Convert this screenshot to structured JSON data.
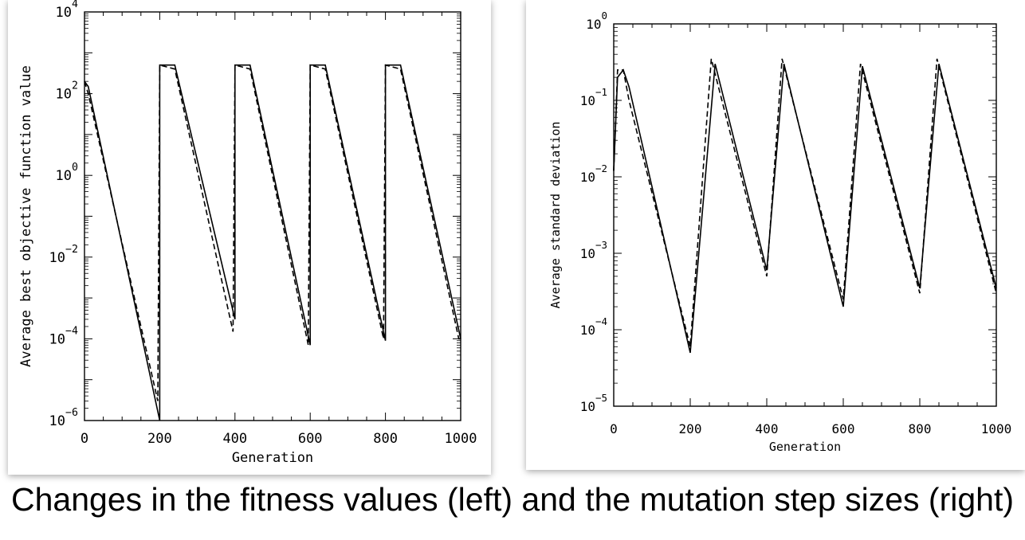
{
  "caption": "Changes in the fitness values (left) and the mutation step sizes (right)",
  "chart_data": [
    {
      "type": "line",
      "xlabel": "Generation",
      "ylabel": "Average best objective function value",
      "xlim": [
        0,
        1000
      ],
      "ylim": [
        1e-06,
        10000.0
      ],
      "yscale": "log",
      "xticks": [
        "0",
        "200",
        "400",
        "600",
        "800",
        "1000"
      ],
      "yticks": [
        {
          "base": "10",
          "exp": "4",
          "value": 10000
        },
        {
          "base": "10",
          "exp": "2",
          "value": 100
        },
        {
          "base": "10",
          "exp": "0",
          "value": 1
        },
        {
          "base": "10",
          "exp": "−2",
          "value": 0.01
        },
        {
          "base": "10",
          "exp": "−4",
          "value": 0.0001
        },
        {
          "base": "10",
          "exp": "−6",
          "value": 1e-06
        }
      ],
      "grid": false,
      "series": [
        {
          "style": "solid",
          "x": [
            0,
            10,
            200,
            200,
            210,
            240,
            400,
            400,
            410,
            440,
            600,
            600,
            610,
            640,
            800,
            800,
            810,
            840,
            1000
          ],
          "y": [
            200,
            150,
            1e-06,
            500,
            500,
            500,
            0.0003,
            500,
            500,
            500,
            7e-05,
            500,
            500,
            500,
            9e-05,
            500,
            500,
            500,
            0.0001
          ]
        },
        {
          "style": "dashed",
          "x": [
            0,
            10,
            195,
            200,
            240,
            395,
            400,
            440,
            595,
            600,
            640,
            795,
            800,
            840,
            995,
            1000
          ],
          "y": [
            200,
            100,
            3e-06,
            500,
            400,
            0.00015,
            500,
            400,
            7e-05,
            500,
            400,
            0.0001,
            500,
            400,
            0.0001,
            0.0001
          ]
        }
      ]
    },
    {
      "type": "line",
      "xlabel": "Generation",
      "ylabel": "Average standard deviation",
      "xlim": [
        0,
        1000
      ],
      "ylim": [
        1e-05,
        1
      ],
      "yscale": "log",
      "xticks": [
        "0",
        "200",
        "400",
        "600",
        "800",
        "1000"
      ],
      "yticks": [
        {
          "base": "10",
          "exp": "0",
          "value": 1
        },
        {
          "base": "10",
          "exp": "−1",
          "value": 0.1
        },
        {
          "base": "10",
          "exp": "−2",
          "value": 0.01
        },
        {
          "base": "10",
          "exp": "−3",
          "value": 0.001
        },
        {
          "base": "10",
          "exp": "−4",
          "value": 0.0001
        },
        {
          "base": "10",
          "exp": "−5",
          "value": 1e-05
        }
      ],
      "grid": false,
      "series": [
        {
          "style": "solid",
          "x": [
            0,
            10,
            25,
            40,
            200,
            265,
            400,
            445,
            600,
            650,
            800,
            850,
            1000
          ],
          "y": [
            0.012,
            0.2,
            0.25,
            0.15,
            5e-05,
            0.3,
            0.0006,
            0.3,
            0.0002,
            0.28,
            0.00035,
            0.3,
            0.00035
          ]
        },
        {
          "style": "dashed",
          "x": [
            0,
            10,
            25,
            40,
            200,
            255,
            400,
            440,
            600,
            645,
            800,
            845,
            1000
          ],
          "y": [
            0.012,
            0.25,
            0.25,
            0.1,
            6e-05,
            0.35,
            0.0005,
            0.35,
            0.00025,
            0.3,
            0.0003,
            0.35,
            0.0003
          ]
        }
      ]
    }
  ]
}
